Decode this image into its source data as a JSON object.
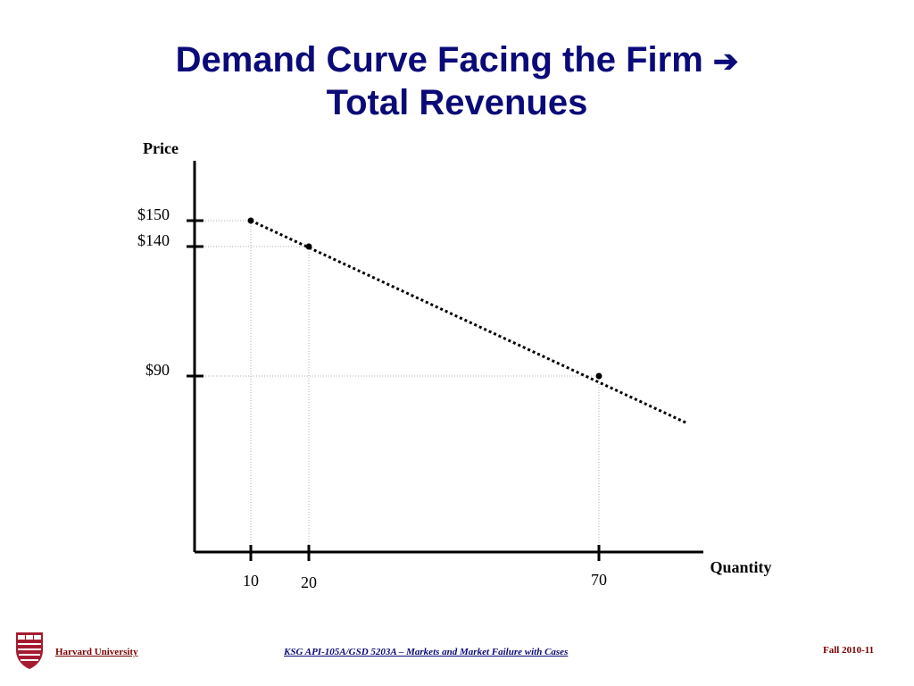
{
  "slide": {
    "title_line1": "Demand Curve Facing the Firm",
    "title_arrow": "➔",
    "title_line2": "Total Revenues"
  },
  "chart_data": {
    "type": "line",
    "ylabel": "Price",
    "xlabel": "Quantity",
    "points": [
      {
        "x": 10,
        "y": 150
      },
      {
        "x": 20,
        "y": 140
      },
      {
        "x": 70,
        "y": 90
      }
    ],
    "line_extends_to": {
      "x": 85,
      "y": 72
    },
    "x_ticks": [
      {
        "value": 10,
        "label": "10"
      },
      {
        "value": 20,
        "label": "20"
      },
      {
        "value": 70,
        "label": "70"
      }
    ],
    "y_ticks": [
      {
        "value": 150,
        "label": "$150"
      },
      {
        "value": 140,
        "label": "$140"
      },
      {
        "value": 90,
        "label": "$90"
      }
    ],
    "line_style": "dotted",
    "guide_lines": "dotted",
    "grid": false
  },
  "footer": {
    "org": "Harvard University",
    "course": "KSG API-105A/GSD 5203A – Markets and Market Failure with Cases",
    "term": "Fall 2010-11",
    "logo_icon": "harvard-shield-icon",
    "colors": {
      "title": "#0a0a78",
      "org": "#7a0000",
      "shield": "#a51c30"
    }
  }
}
